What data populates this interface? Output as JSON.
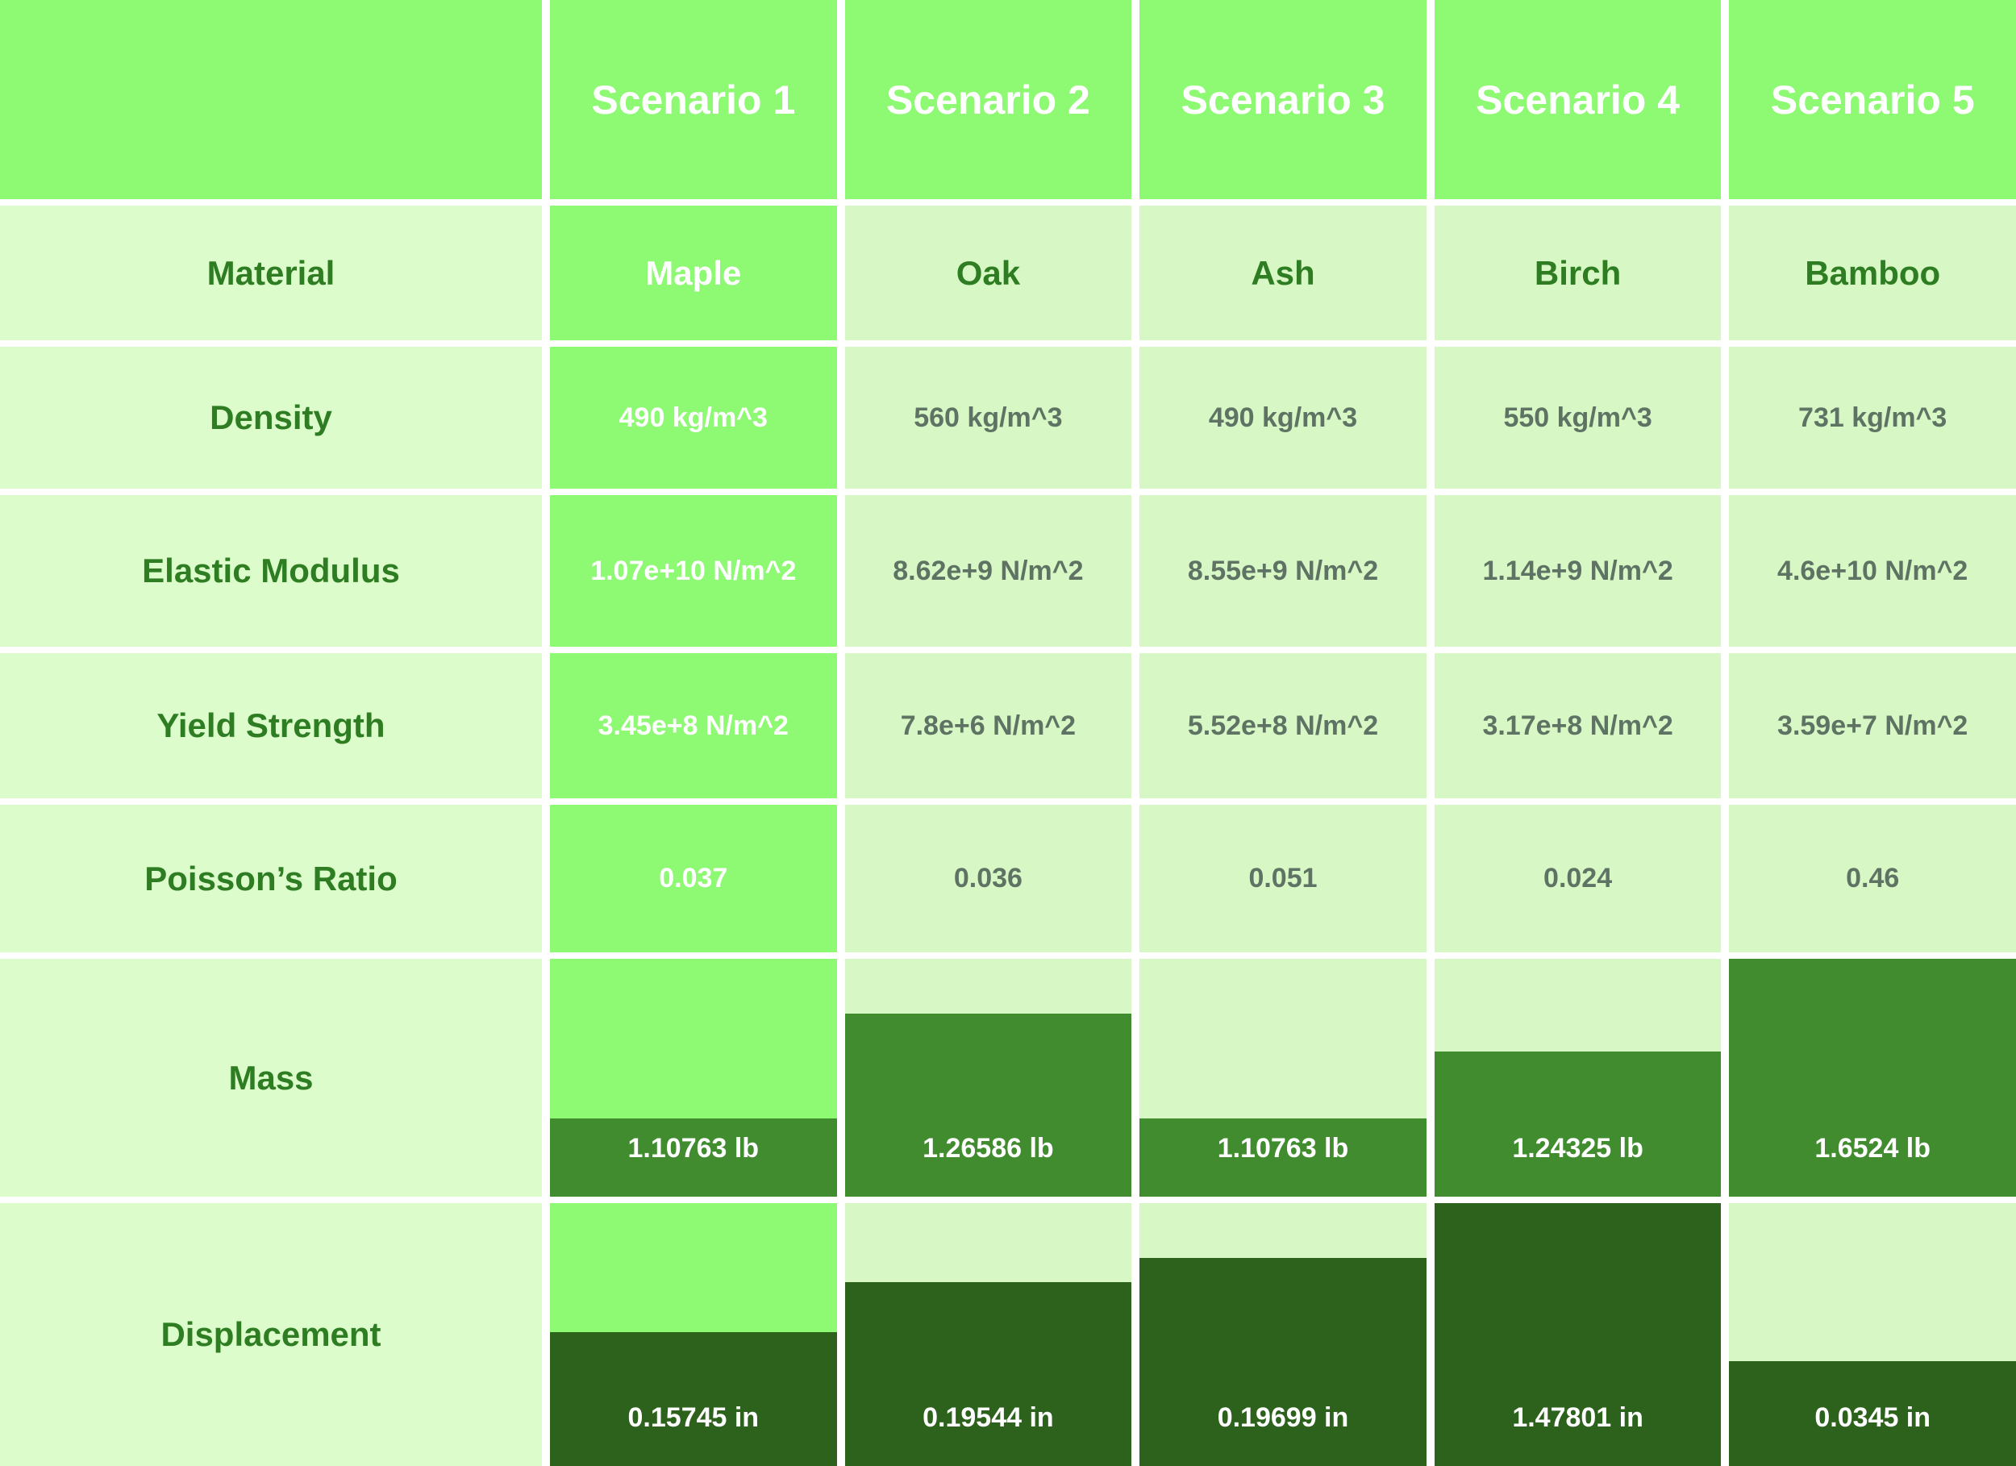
{
  "colors": {
    "header_green": "#8EF973",
    "highlight_column_green": "#8EF973",
    "label_cell_bg": "#DCFDCB",
    "value_cell_bg": "#D7F8C4",
    "mass_bar_green": "#418C2F",
    "displacement_bar_green": "#2C621C",
    "label_text_green": "#2E7D22",
    "value_text_gray": "#5F7365",
    "white_text": "#FFFFFF",
    "grid_gap_white": "#FFFFFF"
  },
  "header": {
    "corner_label": "",
    "scenarios": [
      "Scenario 1",
      "Scenario 2",
      "Scenario 3",
      "Scenario 4",
      "Scenario 5"
    ]
  },
  "property_rows": [
    {
      "label": "Material",
      "values": [
        "Maple",
        "Oak",
        "Ash",
        "Birch",
        "Bamboo"
      ]
    },
    {
      "label": "Density",
      "values": [
        "490 kg/m^3",
        "560 kg/m^3",
        "490 kg/m^3",
        "550 kg/m^3",
        "731 kg/m^3"
      ]
    },
    {
      "label": "Elastic Modulus",
      "values": [
        "1.07e+10 N/m^2",
        "8.62e+9 N/m^2",
        "8.55e+9 N/m^2",
        "1.14e+9 N/m^2",
        "4.6e+10 N/m^2"
      ]
    },
    {
      "label": "Yield Strength",
      "values": [
        "3.45e+8 N/m^2",
        "7.8e+6 N/m^2",
        "5.52e+8 N/m^2",
        "3.17e+8 N/m^2",
        "3.59e+7 N/m^2"
      ]
    },
    {
      "label": "Poisson’s Ratio",
      "values": [
        "0.037",
        "0.036",
        "0.051",
        "0.024",
        "0.46"
      ]
    }
  ],
  "bar_rows": [
    {
      "label": "Mass",
      "values": [
        "1.10763 lb",
        "1.26586 lb",
        "1.10763 lb",
        "1.24325 lb",
        "1.6524 lb"
      ],
      "fractions": [
        0.33,
        0.77,
        0.33,
        0.61,
        1.0
      ]
    },
    {
      "label": "Displacement",
      "values": [
        "0.15745 in",
        "0.19544 in",
        "0.19699 in",
        "1.47801 in",
        "0.0345 in"
      ],
      "fractions": [
        0.51,
        0.7,
        0.79,
        1.0,
        0.4
      ]
    }
  ],
  "chart_data": {
    "type": "table",
    "title": "Scenario comparison of wood materials",
    "columns": [
      "",
      "Scenario 1",
      "Scenario 2",
      "Scenario 3",
      "Scenario 4",
      "Scenario 5"
    ],
    "highlighted_column": "Scenario 1",
    "rows": [
      [
        "Material",
        "Maple",
        "Oak",
        "Ash",
        "Birch",
        "Bamboo"
      ],
      [
        "Density",
        "490 kg/m^3",
        "560 kg/m^3",
        "490 kg/m^3",
        "550 kg/m^3",
        "731 kg/m^3"
      ],
      [
        "Elastic Modulus",
        "1.07e+10 N/m^2",
        "8.62e+9 N/m^2",
        "8.55e+9 N/m^2",
        "1.14e+9 N/m^2",
        "4.6e+10 N/m^2"
      ],
      [
        "Yield Strength",
        "3.45e+8 N/m^2",
        "7.8e+6 N/m^2",
        "5.52e+8 N/m^2",
        "3.17e+8 N/m^2",
        "3.59e+7 N/m^2"
      ],
      [
        "Poisson’s Ratio",
        "0.037",
        "0.036",
        "0.051",
        "0.024",
        "0.46"
      ],
      [
        "Mass",
        "1.10763 lb",
        "1.26586 lb",
        "1.10763 lb",
        "1.24325 lb",
        "1.6524 lb"
      ],
      [
        "Displacement",
        "0.15745 in",
        "0.19544 in",
        "0.19699 in",
        "1.47801 in",
        "0.0345 in"
      ]
    ],
    "embedded_bars": [
      {
        "row": "Mass",
        "unit": "lb",
        "type": "bar",
        "categories": [
          "Scenario 1",
          "Scenario 2",
          "Scenario 3",
          "Scenario 4",
          "Scenario 5"
        ],
        "values": [
          1.10763,
          1.26586,
          1.10763,
          1.24325,
          1.6524
        ],
        "fill_fractions": [
          0.33,
          0.77,
          0.33,
          0.61,
          1.0
        ]
      },
      {
        "row": "Displacement",
        "unit": "in",
        "type": "bar",
        "categories": [
          "Scenario 1",
          "Scenario 2",
          "Scenario 3",
          "Scenario 4",
          "Scenario 5"
        ],
        "values": [
          0.15745,
          0.19544,
          0.19699,
          1.47801,
          0.0345
        ],
        "fill_fractions": [
          0.51,
          0.7,
          0.79,
          1.0,
          0.4
        ]
      }
    ]
  }
}
